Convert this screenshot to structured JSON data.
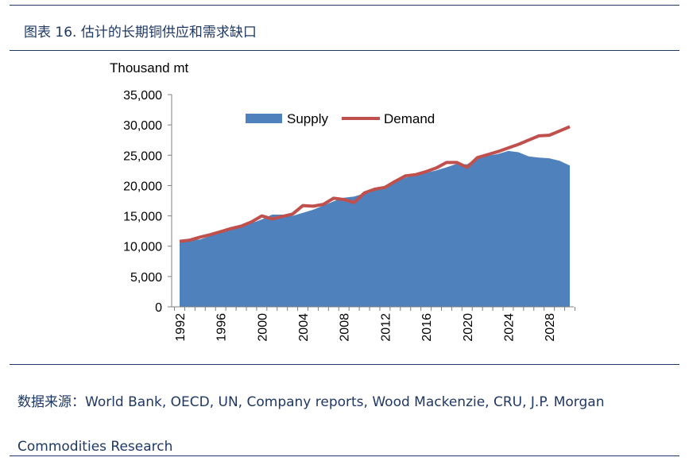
{
  "figure_title": "图表 16. 估计的长期铜供应和需求缺口",
  "source_line": "数据来源：World Bank, OECD, UN, Company reports, Wood Mackenzie, CRU, J.P. Morgan Commodities Research",
  "chart_data": {
    "type": "area",
    "ylabel": "Thousand mt",
    "ylim": [
      0,
      35000
    ],
    "y_ticks": [
      0,
      5000,
      10000,
      15000,
      20000,
      25000,
      30000,
      35000
    ],
    "y_tick_labels": [
      "0",
      "5,000",
      "10,000",
      "15,000",
      "20,000",
      "25,000",
      "30,000",
      "35,000"
    ],
    "x_ticks": [
      1992,
      1996,
      2000,
      2004,
      2008,
      2012,
      2016,
      2020,
      2024,
      2028
    ],
    "x": [
      1992,
      1993,
      1994,
      1995,
      1996,
      1997,
      1998,
      1999,
      2000,
      2001,
      2002,
      2003,
      2004,
      2005,
      2006,
      2007,
      2008,
      2009,
      2010,
      2011,
      2012,
      2013,
      2014,
      2015,
      2016,
      2017,
      2018,
      2019,
      2020,
      2021,
      2022,
      2023,
      2024,
      2025,
      2026,
      2027,
      2028,
      2029,
      2030
    ],
    "series": [
      {
        "name": "Supply",
        "type": "area",
        "color": "#4f81bd",
        "values": [
          10800,
          11000,
          11100,
          11700,
          12300,
          13000,
          13500,
          13800,
          14400,
          15200,
          15200,
          15000,
          15500,
          16000,
          16700,
          17400,
          18000,
          18200,
          18700,
          19200,
          19800,
          20600,
          21300,
          21700,
          22100,
          22500,
          23000,
          23600,
          23500,
          24600,
          24900,
          25200,
          25700,
          25500,
          24800,
          24600,
          24500,
          24100,
          23300
        ]
      },
      {
        "name": "Demand",
        "type": "line",
        "color": "#c0504d",
        "values": [
          10800,
          11000,
          11500,
          11900,
          12400,
          12900,
          13300,
          14000,
          15000,
          14500,
          14900,
          15300,
          16700,
          16600,
          16900,
          17900,
          17700,
          17200,
          18800,
          19400,
          19700,
          20700,
          21600,
          21800,
          22300,
          22900,
          23800,
          23800,
          23000,
          24600,
          25100,
          25600,
          26200,
          26800,
          27500,
          28200,
          28300,
          29000,
          29700
        ]
      }
    ],
    "legend_position": "top-center",
    "grid": false
  }
}
